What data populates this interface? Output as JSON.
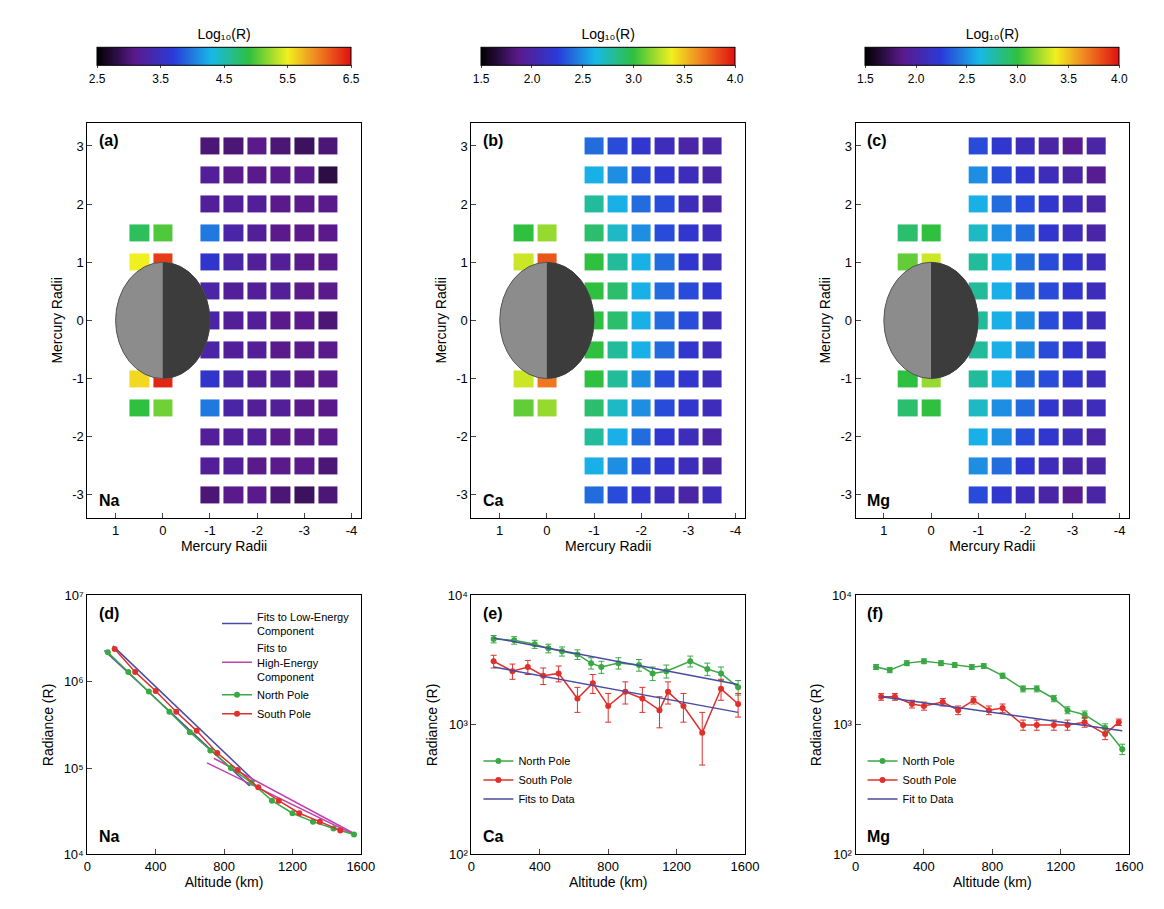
{
  "chart_data": [
    {
      "type": "heatmap",
      "annotations": [
        "(a)",
        "Na"
      ],
      "x_label": "Mercury Radii",
      "y_label": "Mercury Radii",
      "xlim": [
        1.6,
        -4.2
      ],
      "xticks": [
        1,
        0,
        -1,
        -2,
        -3,
        -4
      ],
      "ylim": [
        -3.4,
        3.4
      ],
      "yticks": [
        -3,
        -2,
        -1,
        0,
        1,
        2,
        3
      ],
      "planet_radius": 1,
      "colorbar": {
        "title": "Log₁₀(R)",
        "range": [
          2.5,
          6.5
        ],
        "ticks": [
          2.5,
          3.5,
          4.5,
          5.5,
          6.5
        ]
      },
      "x": [
        0.5,
        0,
        -0.5,
        -1,
        -1.5,
        -2,
        -2.5,
        -3,
        -3.5
      ],
      "y": [
        -3,
        -2.5,
        -2,
        -1.5,
        -1,
        -0.5,
        0,
        0.5,
        1,
        1.5,
        2,
        2.5,
        3
      ],
      "z": [
        [
          null,
          null,
          null,
          3.0,
          3.1,
          3.1,
          3.0,
          2.9,
          3.0
        ],
        [
          null,
          null,
          null,
          3.2,
          3.2,
          3.1,
          3.1,
          3.1,
          3.0
        ],
        [
          null,
          null,
          null,
          3.2,
          3.2,
          3.2,
          3.1,
          3.1,
          3.1
        ],
        [
          4.9,
          5.1,
          null,
          4.0,
          3.3,
          3.2,
          3.2,
          3.1,
          3.1
        ],
        [
          5.6,
          6.4,
          null,
          3.6,
          3.3,
          3.2,
          3.2,
          3.1,
          3.1
        ],
        [
          null,
          null,
          null,
          3.3,
          3.2,
          3.2,
          3.1,
          3.1,
          3.1
        ],
        [
          null,
          null,
          null,
          3.3,
          3.2,
          3.2,
          3.1,
          3.1,
          3.0
        ],
        [
          null,
          null,
          null,
          3.3,
          3.2,
          3.2,
          3.2,
          3.1,
          3.1
        ],
        [
          5.5,
          6.3,
          null,
          3.6,
          3.3,
          3.2,
          3.2,
          3.1,
          3.1
        ],
        [
          4.8,
          5.0,
          null,
          4.0,
          3.3,
          3.2,
          3.1,
          3.1,
          3.1
        ],
        [
          null,
          null,
          null,
          3.2,
          3.2,
          3.2,
          3.1,
          3.1,
          3.1
        ],
        [
          null,
          null,
          null,
          3.2,
          3.1,
          3.1,
          3.1,
          3.1,
          2.8
        ],
        [
          null,
          null,
          null,
          3.0,
          3.0,
          3.1,
          3.0,
          2.9,
          3.0
        ]
      ]
    },
    {
      "type": "heatmap",
      "annotations": [
        "(b)",
        "Ca"
      ],
      "x_label": "Mercury Radii",
      "y_label": "Mercury Radii",
      "xlim": [
        1.6,
        -4.2
      ],
      "xticks": [
        1,
        0,
        -1,
        -2,
        -3,
        -4
      ],
      "ylim": [
        -3.4,
        3.4
      ],
      "yticks": [
        -3,
        -2,
        -1,
        0,
        1,
        2,
        3
      ],
      "planet_radius": 1,
      "colorbar": {
        "title": "Log₁₀(R)",
        "range": [
          1.5,
          4.0
        ],
        "ticks": [
          1.5,
          {
            "value": 2,
            "label": "2.0"
          },
          2.5,
          {
            "value": 3,
            "label": "3.0"
          },
          3.5,
          {
            "value": 4,
            "label": "4.0"
          }
        ]
      },
      "x": [
        0.5,
        0,
        -0.5,
        -1,
        -1.5,
        -2,
        -2.5,
        -3,
        -3.5
      ],
      "y": [
        -3,
        -2.5,
        -2,
        -1.5,
        -1,
        -0.5,
        0,
        0.5,
        1,
        1.5,
        2,
        2.5,
        3
      ],
      "z": [
        [
          null,
          null,
          null,
          2.4,
          2.3,
          2.2,
          2.1,
          2.0,
          2.1
        ],
        [
          null,
          null,
          null,
          2.6,
          2.5,
          2.3,
          2.2,
          2.1,
          2.0
        ],
        [
          null,
          null,
          null,
          2.8,
          2.6,
          2.4,
          2.2,
          2.1,
          2.0
        ],
        [
          3.1,
          3.2,
          null,
          2.9,
          2.7,
          2.5,
          2.3,
          2.2,
          2.1
        ],
        [
          3.3,
          3.7,
          null,
          3.0,
          2.8,
          2.5,
          2.3,
          2.2,
          2.1
        ],
        [
          null,
          null,
          null,
          3.0,
          2.8,
          2.6,
          2.4,
          2.2,
          2.1
        ],
        [
          null,
          null,
          null,
          3.0,
          2.9,
          2.6,
          2.4,
          2.3,
          2.1
        ],
        [
          null,
          null,
          null,
          3.0,
          2.9,
          2.6,
          2.4,
          2.3,
          2.2
        ],
        [
          3.3,
          3.8,
          null,
          3.0,
          2.8,
          2.6,
          2.4,
          2.2,
          2.1
        ],
        [
          3.0,
          3.2,
          null,
          2.9,
          2.7,
          2.5,
          2.3,
          2.2,
          2.1
        ],
        [
          null,
          null,
          null,
          2.8,
          2.6,
          2.4,
          2.3,
          2.1,
          2.0
        ],
        [
          null,
          null,
          null,
          2.6,
          2.5,
          2.3,
          2.2,
          2.1,
          2.0
        ],
        [
          null,
          null,
          null,
          2.4,
          2.3,
          2.2,
          2.1,
          2.0,
          2.0
        ]
      ]
    },
    {
      "type": "heatmap",
      "annotations": [
        "(c)",
        "Mg"
      ],
      "x_label": "Mercury Radii",
      "y_label": "Mercury Radii",
      "xlim": [
        1.6,
        -4.2
      ],
      "xticks": [
        1,
        0,
        -1,
        -2,
        -3,
        -4
      ],
      "ylim": [
        -3.4,
        3.4
      ],
      "yticks": [
        -3,
        -2,
        -1,
        0,
        1,
        2,
        3
      ],
      "planet_radius": 1,
      "colorbar": {
        "title": "Log₁₀(R)",
        "range": [
          1.5,
          4.0
        ],
        "ticks": [
          1.5,
          {
            "value": 2,
            "label": "2.0"
          },
          2.5,
          {
            "value": 3,
            "label": "3.0"
          },
          3.5,
          {
            "value": 4,
            "label": "4.0"
          }
        ]
      },
      "x": [
        0.5,
        0,
        -0.5,
        -1,
        -1.5,
        -2,
        -2.5,
        -3,
        -3.5
      ],
      "y": [
        -3,
        -2.5,
        -2,
        -1.5,
        -1,
        -0.5,
        0,
        0.5,
        1,
        1.5,
        2,
        2.5,
        3
      ],
      "z": [
        [
          null,
          null,
          null,
          2.3,
          2.2,
          2.1,
          2.0,
          1.9,
          2.0
        ],
        [
          null,
          null,
          null,
          2.5,
          2.4,
          2.2,
          2.1,
          2.0,
          2.0
        ],
        [
          null,
          null,
          null,
          2.6,
          2.5,
          2.3,
          2.2,
          2.1,
          2.0
        ],
        [
          2.9,
          3.0,
          null,
          2.7,
          2.5,
          2.4,
          2.2,
          2.1,
          2.1
        ],
        [
          3.0,
          3.2,
          null,
          2.8,
          2.6,
          2.4,
          2.3,
          2.2,
          2.1
        ],
        [
          null,
          null,
          null,
          2.8,
          2.6,
          2.5,
          2.3,
          2.2,
          2.1
        ],
        [
          null,
          null,
          null,
          2.8,
          2.6,
          2.5,
          2.3,
          2.2,
          2.1
        ],
        [
          null,
          null,
          null,
          2.8,
          2.6,
          2.4,
          2.3,
          2.2,
          2.1
        ],
        [
          3.1,
          3.3,
          null,
          2.8,
          2.6,
          2.4,
          2.3,
          2.2,
          2.1
        ],
        [
          2.9,
          3.0,
          null,
          2.7,
          2.5,
          2.4,
          2.2,
          2.1,
          2.0
        ],
        [
          null,
          null,
          null,
          2.6,
          2.4,
          2.3,
          2.2,
          2.1,
          2.0
        ],
        [
          null,
          null,
          null,
          2.5,
          2.3,
          2.2,
          2.1,
          2.0,
          1.9
        ],
        [
          null,
          null,
          null,
          2.3,
          2.2,
          2.1,
          2.0,
          1.9,
          2.0
        ]
      ]
    },
    {
      "type": "line",
      "annotations": [
        "(d)",
        "Na"
      ],
      "log": "y",
      "x_label": "Altitude (km)",
      "y_label": "Radiance (R)",
      "xlim": [
        0,
        1600
      ],
      "xticks": [
        0,
        400,
        800,
        1200,
        1600
      ],
      "ylim": [
        10000,
        10000000
      ],
      "yticks": [
        {
          "value": 10000,
          "label": "10⁴"
        },
        {
          "value": 100000,
          "label": "10⁵"
        },
        {
          "value": 1000000,
          "label": "10⁶"
        },
        {
          "value": 10000000,
          "label": "10⁷"
        }
      ],
      "legend": "top right",
      "series": [
        {
          "name": "Fits to Low-Energy Component",
          "color": "#4a4aa0",
          "line_style": "solid",
          "x": [
            100,
            950,
            null,
            150,
            980
          ],
          "values": [
            2300000,
            62000,
            null,
            2600000,
            70000
          ]
        },
        {
          "name": "Fits to High-Energy Component",
          "color": "#c040b0",
          "line_style": "solid",
          "x": [
            700,
            1560,
            null,
            740,
            1560
          ],
          "values": [
            115000,
            17000,
            null,
            130000,
            17500
          ]
        },
        {
          "name": "North Pole",
          "color": "#3aa845",
          "marker": "circle",
          "line_style": "solid",
          "x": [
            120,
            240,
            360,
            480,
            600,
            720,
            840,
            960,
            1080,
            1200,
            1320,
            1440,
            1560
          ],
          "values": [
            2200000,
            1300000,
            770000,
            450000,
            260000,
            160000,
            100000,
            68000,
            42000,
            30000,
            24000,
            20000,
            17000
          ]
        },
        {
          "name": "South Pole",
          "color": "#e0302c",
          "marker": "circle",
          "line_style": "solid",
          "x": [
            160,
            280,
            400,
            520,
            640,
            760,
            880,
            1000,
            1120,
            1240,
            1360,
            1480
          ],
          "values": [
            2400000,
            1300000,
            780000,
            450000,
            270000,
            150000,
            95000,
            60000,
            42000,
            30000,
            24000,
            19000
          ]
        }
      ]
    },
    {
      "type": "line",
      "annotations": [
        "(e)",
        "Ca"
      ],
      "log": "y",
      "x_label": "Altitude (km)",
      "y_label": "Radiance (R)",
      "xlim": [
        0,
        1600
      ],
      "xticks": [
        0,
        400,
        800,
        1200,
        1600
      ],
      "ylim": [
        100,
        10000
      ],
      "yticks": [
        {
          "value": 100,
          "label": "10²"
        },
        {
          "value": 1000,
          "label": "10³"
        },
        {
          "value": 10000,
          "label": "10⁴"
        }
      ],
      "legend": "bottom left",
      "series": [
        {
          "name": "North Pole",
          "color": "#3aa845",
          "marker": "circle",
          "line_style": "solid",
          "x": [
            130,
            250,
            370,
            450,
            530,
            620,
            700,
            760,
            860,
            980,
            1060,
            1140,
            1280,
            1380,
            1460,
            1560
          ],
          "values": [
            4600,
            4500,
            4200,
            3900,
            3700,
            3500,
            3000,
            2800,
            3000,
            2900,
            2500,
            2600,
            3100,
            2700,
            2500,
            1950
          ],
          "error": [
            300,
            300,
            300,
            300,
            300,
            300,
            300,
            300,
            300,
            300,
            300,
            300,
            300,
            300,
            300,
            250
          ]
        },
        {
          "name": "South Pole",
          "color": "#e0302c",
          "marker": "circle",
          "line_style": "solid",
          "x": [
            130,
            240,
            330,
            420,
            510,
            620,
            710,
            800,
            900,
            1000,
            1100,
            1150,
            1240,
            1350,
            1460,
            1560
          ],
          "values": [
            3100,
            2600,
            2800,
            2400,
            2500,
            1600,
            2100,
            1400,
            1800,
            1600,
            1300,
            1800,
            1400,
            870,
            1900,
            1450
          ],
          "error": [
            350,
            350,
            350,
            350,
            350,
            350,
            350,
            350,
            350,
            350,
            350,
            350,
            350,
            380,
            350,
            300
          ]
        },
        {
          "name": "Fits to Data",
          "color": "#4a4aa0",
          "line_style": "solid",
          "x": [
            130,
            1560,
            null,
            130,
            1560
          ],
          "values": [
            4700,
            2050,
            null,
            2800,
            1250
          ]
        }
      ]
    },
    {
      "type": "line",
      "annotations": [
        "(f)",
        "Mg"
      ],
      "log": "y",
      "x_label": "Altitude (km)",
      "y_label": "Radiance (R)",
      "xlim": [
        0,
        1600
      ],
      "xticks": [
        0,
        400,
        800,
        1200,
        1600
      ],
      "ylim": [
        100,
        10000
      ],
      "yticks": [
        {
          "value": 100,
          "label": "10²"
        },
        {
          "value": 1000,
          "label": "10³"
        },
        {
          "value": 10000,
          "label": "10⁴"
        }
      ],
      "legend": "bottom left",
      "series": [
        {
          "name": "North Pole",
          "color": "#3aa845",
          "marker": "circle",
          "line_style": "solid",
          "x": [
            120,
            200,
            300,
            400,
            500,
            580,
            680,
            750,
            860,
            980,
            1060,
            1160,
            1240,
            1340,
            1460,
            1560
          ],
          "values": [
            2800,
            2650,
            3000,
            3100,
            3000,
            2900,
            2800,
            2850,
            2400,
            1900,
            1900,
            1600,
            1300,
            1200,
            950,
            650
          ],
          "error": [
            120,
            120,
            130,
            130,
            130,
            120,
            120,
            120,
            110,
            100,
            100,
            90,
            80,
            80,
            70,
            60
          ]
        },
        {
          "name": "South Pole",
          "color": "#e0302c",
          "marker": "circle",
          "line_style": "solid",
          "x": [
            150,
            230,
            330,
            400,
            510,
            600,
            690,
            780,
            860,
            980,
            1060,
            1160,
            1240,
            1340,
            1460,
            1540
          ],
          "values": [
            1650,
            1650,
            1450,
            1400,
            1500,
            1300,
            1550,
            1300,
            1350,
            1000,
            1000,
            1000,
            1000,
            1050,
            850,
            1050
          ],
          "error": [
            100,
            100,
            100,
            100,
            100,
            100,
            100,
            100,
            100,
            90,
            90,
            90,
            90,
            90,
            80,
            60
          ]
        },
        {
          "name": "Fit to Data",
          "color": "#4a4aa0",
          "line_style": "solid",
          "x": [
            150,
            1560
          ],
          "values": [
            1650,
            900
          ]
        }
      ]
    }
  ]
}
